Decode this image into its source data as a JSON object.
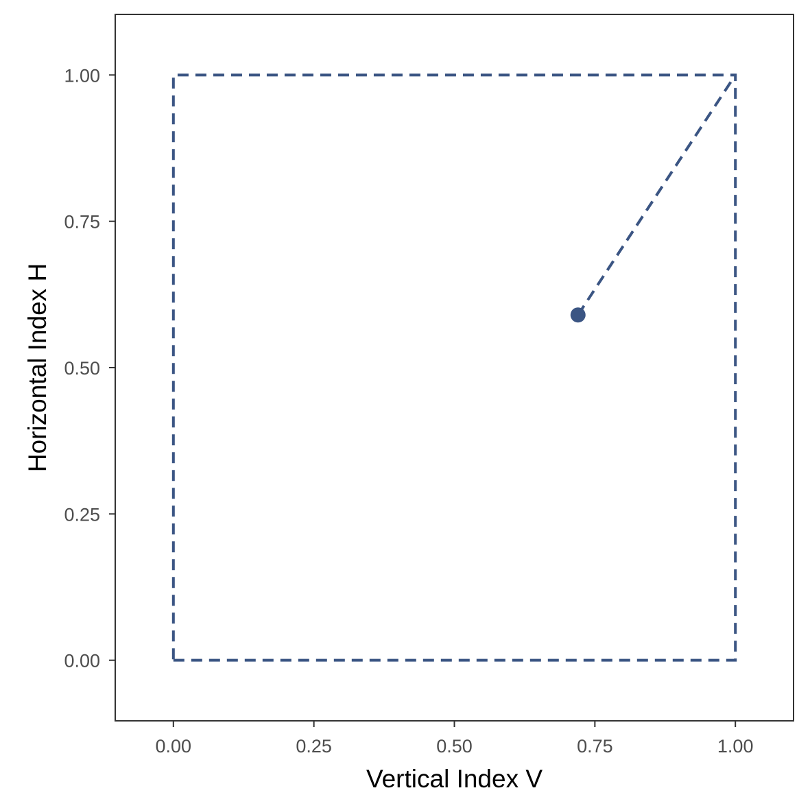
{
  "chart_data": {
    "type": "scatter",
    "title": "",
    "xlabel": "Vertical Index V",
    "ylabel": "Horizontal Index H",
    "xlim": [
      -0.1035,
      1.1035
    ],
    "ylim": [
      -0.1035,
      1.1035
    ],
    "x_ticks": [
      0,
      0.25,
      0.5,
      0.75,
      1
    ],
    "y_ticks": [
      0,
      0.25,
      0.5,
      0.75,
      1
    ],
    "x_tick_labels": [
      "0.00",
      "0.25",
      "0.50",
      "0.75",
      "1.00"
    ],
    "y_tick_labels": [
      "0.00",
      "0.25",
      "0.50",
      "0.75",
      "1.00"
    ],
    "grid": false,
    "color": "#3b5583",
    "point": {
      "x": 0.72,
      "y": 0.59
    },
    "boundary_square": [
      [
        0,
        0
      ],
      [
        1,
        0
      ],
      [
        1,
        1
      ],
      [
        0,
        1
      ]
    ],
    "dashed_segment": [
      [
        0.72,
        0.59
      ],
      [
        1,
        1
      ]
    ]
  }
}
